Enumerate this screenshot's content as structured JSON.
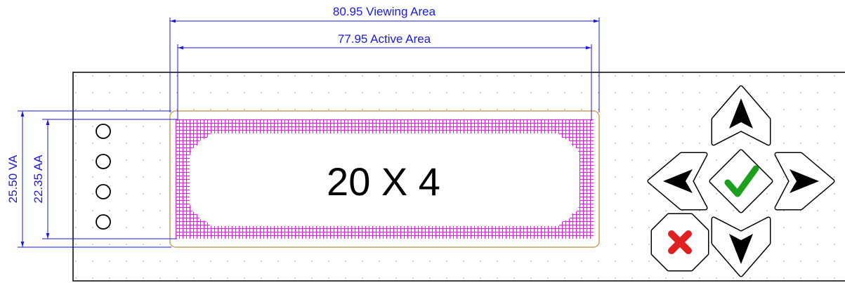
{
  "dimensions": [
    {
      "label": "80.95 Viewing Area"
    },
    {
      "label": "77.95 Active Area"
    },
    {
      "label": "25.50 VA"
    },
    {
      "label": "22.35 AA"
    }
  ],
  "display": {
    "label": "20 X 4"
  }
}
